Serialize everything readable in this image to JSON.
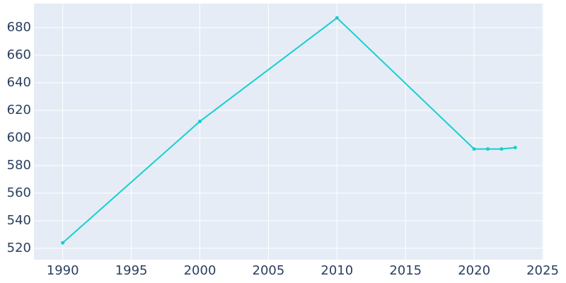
{
  "chart_data": {
    "type": "line",
    "x": [
      1990,
      2000,
      2010,
      2020,
      2021,
      2022,
      2023
    ],
    "values": [
      524,
      612,
      687,
      592,
      592,
      592,
      593
    ],
    "color": "#17cfcf",
    "xlim": [
      1987.9,
      2025.05
    ],
    "xticks": [
      1990,
      1995,
      2000,
      2005,
      2010,
      2015,
      2020,
      2025
    ],
    "ylim": [
      511.8,
      697.4
    ],
    "yticks": [
      520,
      540,
      560,
      580,
      600,
      620,
      640,
      660,
      680
    ],
    "grid": true
  }
}
